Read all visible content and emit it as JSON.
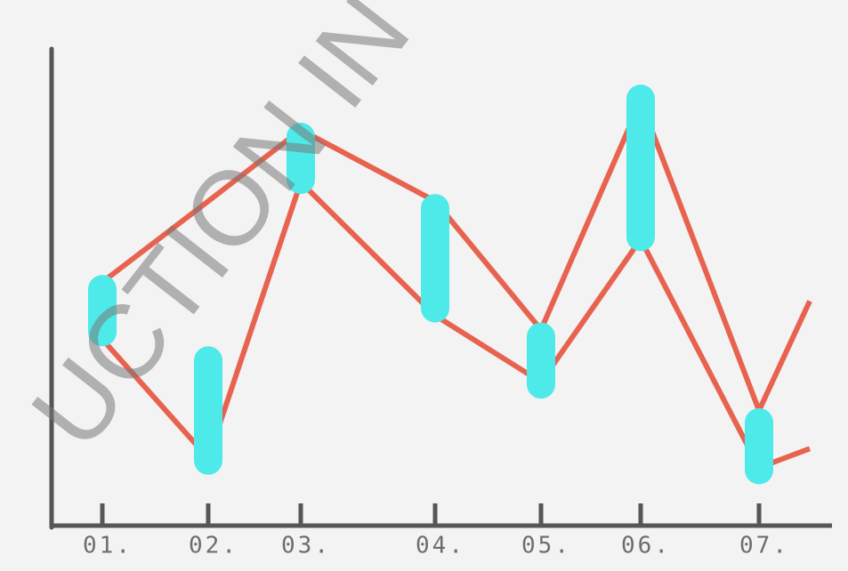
{
  "chart_data": {
    "type": "range",
    "watermark": "UCTION IN",
    "categories": [
      "01.",
      "02.",
      "03.",
      "04.",
      "05.",
      "06.",
      "07.",
      null
    ],
    "series": [
      {
        "color": "#e8634f",
        "values": [
          51,
          68,
          83,
          68,
          41,
          89,
          24,
          47
        ]
      },
      {
        "color": "#e8634f",
        "values": [
          39,
          14,
          72,
          44,
          30,
          60,
          12,
          16
        ]
      }
    ],
    "bars": {
      "color": "#4ee9e9",
      "low": [
        39,
        12,
        71,
        44,
        28,
        59,
        10,
        null
      ],
      "high": [
        51,
        36,
        83,
        68,
        41,
        91,
        23,
        null
      ]
    },
    "ylim": [
      0,
      100
    ],
    "axis_color": "#565656"
  }
}
